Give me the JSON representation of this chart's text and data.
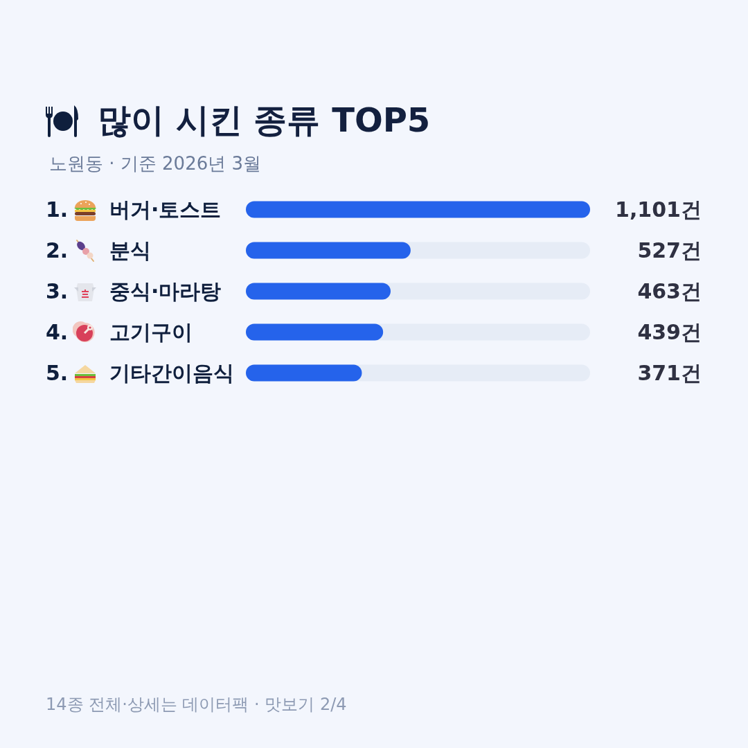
{
  "chart_data": {
    "type": "bar",
    "orientation": "horizontal",
    "title": "많이 시킨 종류 TOP5",
    "subtitle": "노원동 · 기준 2026년 3월",
    "categories": [
      "1. 버거·토스트",
      "2. 분식",
      "3. 중식·마라탕",
      "4. 고기구이",
      "5. 기타간이음식"
    ],
    "values": [
      1101,
      527,
      463,
      439,
      371
    ],
    "value_labels": [
      "1,101건",
      "527건",
      "463건",
      "439건",
      "371건"
    ],
    "color": "#2563eb",
    "xlim": [
      0,
      1101
    ],
    "tick_labels": "y",
    "annotations": [
      "14종 전체·상세는 데이터팩 · 맛보기 2/4"
    ]
  }
}
